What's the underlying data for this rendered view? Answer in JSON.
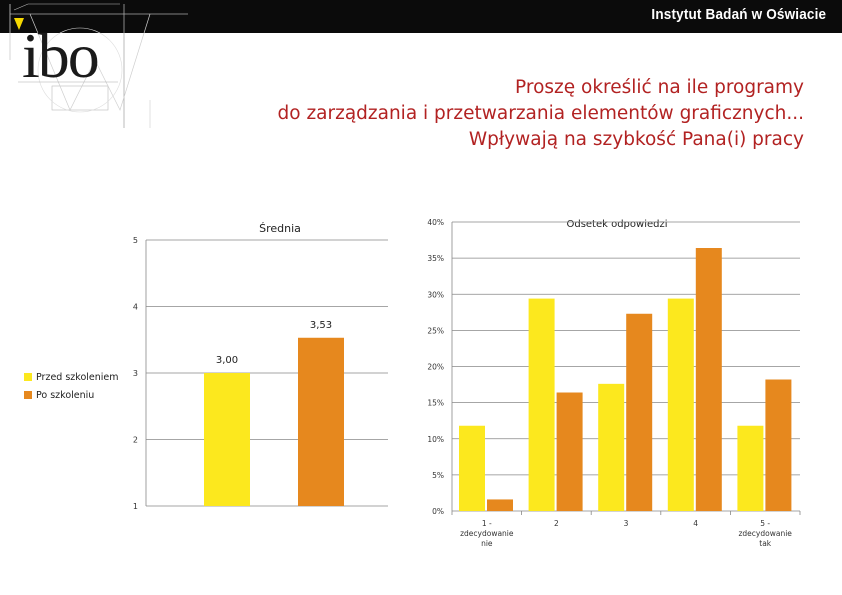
{
  "header": {
    "institute": "Instytut Badań w Oświacie",
    "logo_text": "ibo"
  },
  "title_lines": [
    "Proszę określić na ile programy",
    "do zarządzania i przetwarzania elementów graficznych...",
    "Wpływają na szybkość Pana(i) pracy"
  ],
  "colors": {
    "before": "#FCE81E",
    "after": "#E6881E",
    "title": "#B22222"
  },
  "legend": [
    {
      "label": "Przed szkoleniem",
      "color": "#FCE81E"
    },
    {
      "label": "Po szkoleniu",
      "color": "#E6881E"
    }
  ],
  "chart_data": [
    {
      "type": "bar",
      "title": "Średnia",
      "categories": [
        ""
      ],
      "series": [
        {
          "name": "Przed szkoleniem",
          "values": [
            3.0
          ]
        },
        {
          "name": "Po szkoleniu",
          "values": [
            3.53
          ]
        }
      ],
      "data_labels": [
        "3,00",
        "3,53"
      ],
      "ylim": [
        1,
        5
      ],
      "yticks": [
        "1",
        "2",
        "3",
        "4",
        "5"
      ]
    },
    {
      "type": "bar",
      "title": "Odsetek odpowiedzi",
      "categories": [
        "1 - zdecydowanie nie",
        "2",
        "3",
        "4",
        "5 - zdecydowanie tak"
      ],
      "category_lines": [
        [
          "1 -",
          "zdecydowanie",
          "nie"
        ],
        [
          "2"
        ],
        [
          "3"
        ],
        [
          "4"
        ],
        [
          "5 -",
          "zdecydowanie",
          "tak"
        ]
      ],
      "series": [
        {
          "name": "Przed szkoleniem",
          "values": [
            11.8,
            29.4,
            17.6,
            29.4,
            11.8
          ]
        },
        {
          "name": "Po szkoleniu",
          "values": [
            1.6,
            16.4,
            27.3,
            36.4,
            18.2
          ]
        }
      ],
      "ylim": [
        0,
        40
      ],
      "yticks": [
        "0%",
        "5%",
        "10%",
        "15%",
        "20%",
        "25%",
        "30%",
        "35%",
        "40%"
      ]
    }
  ]
}
